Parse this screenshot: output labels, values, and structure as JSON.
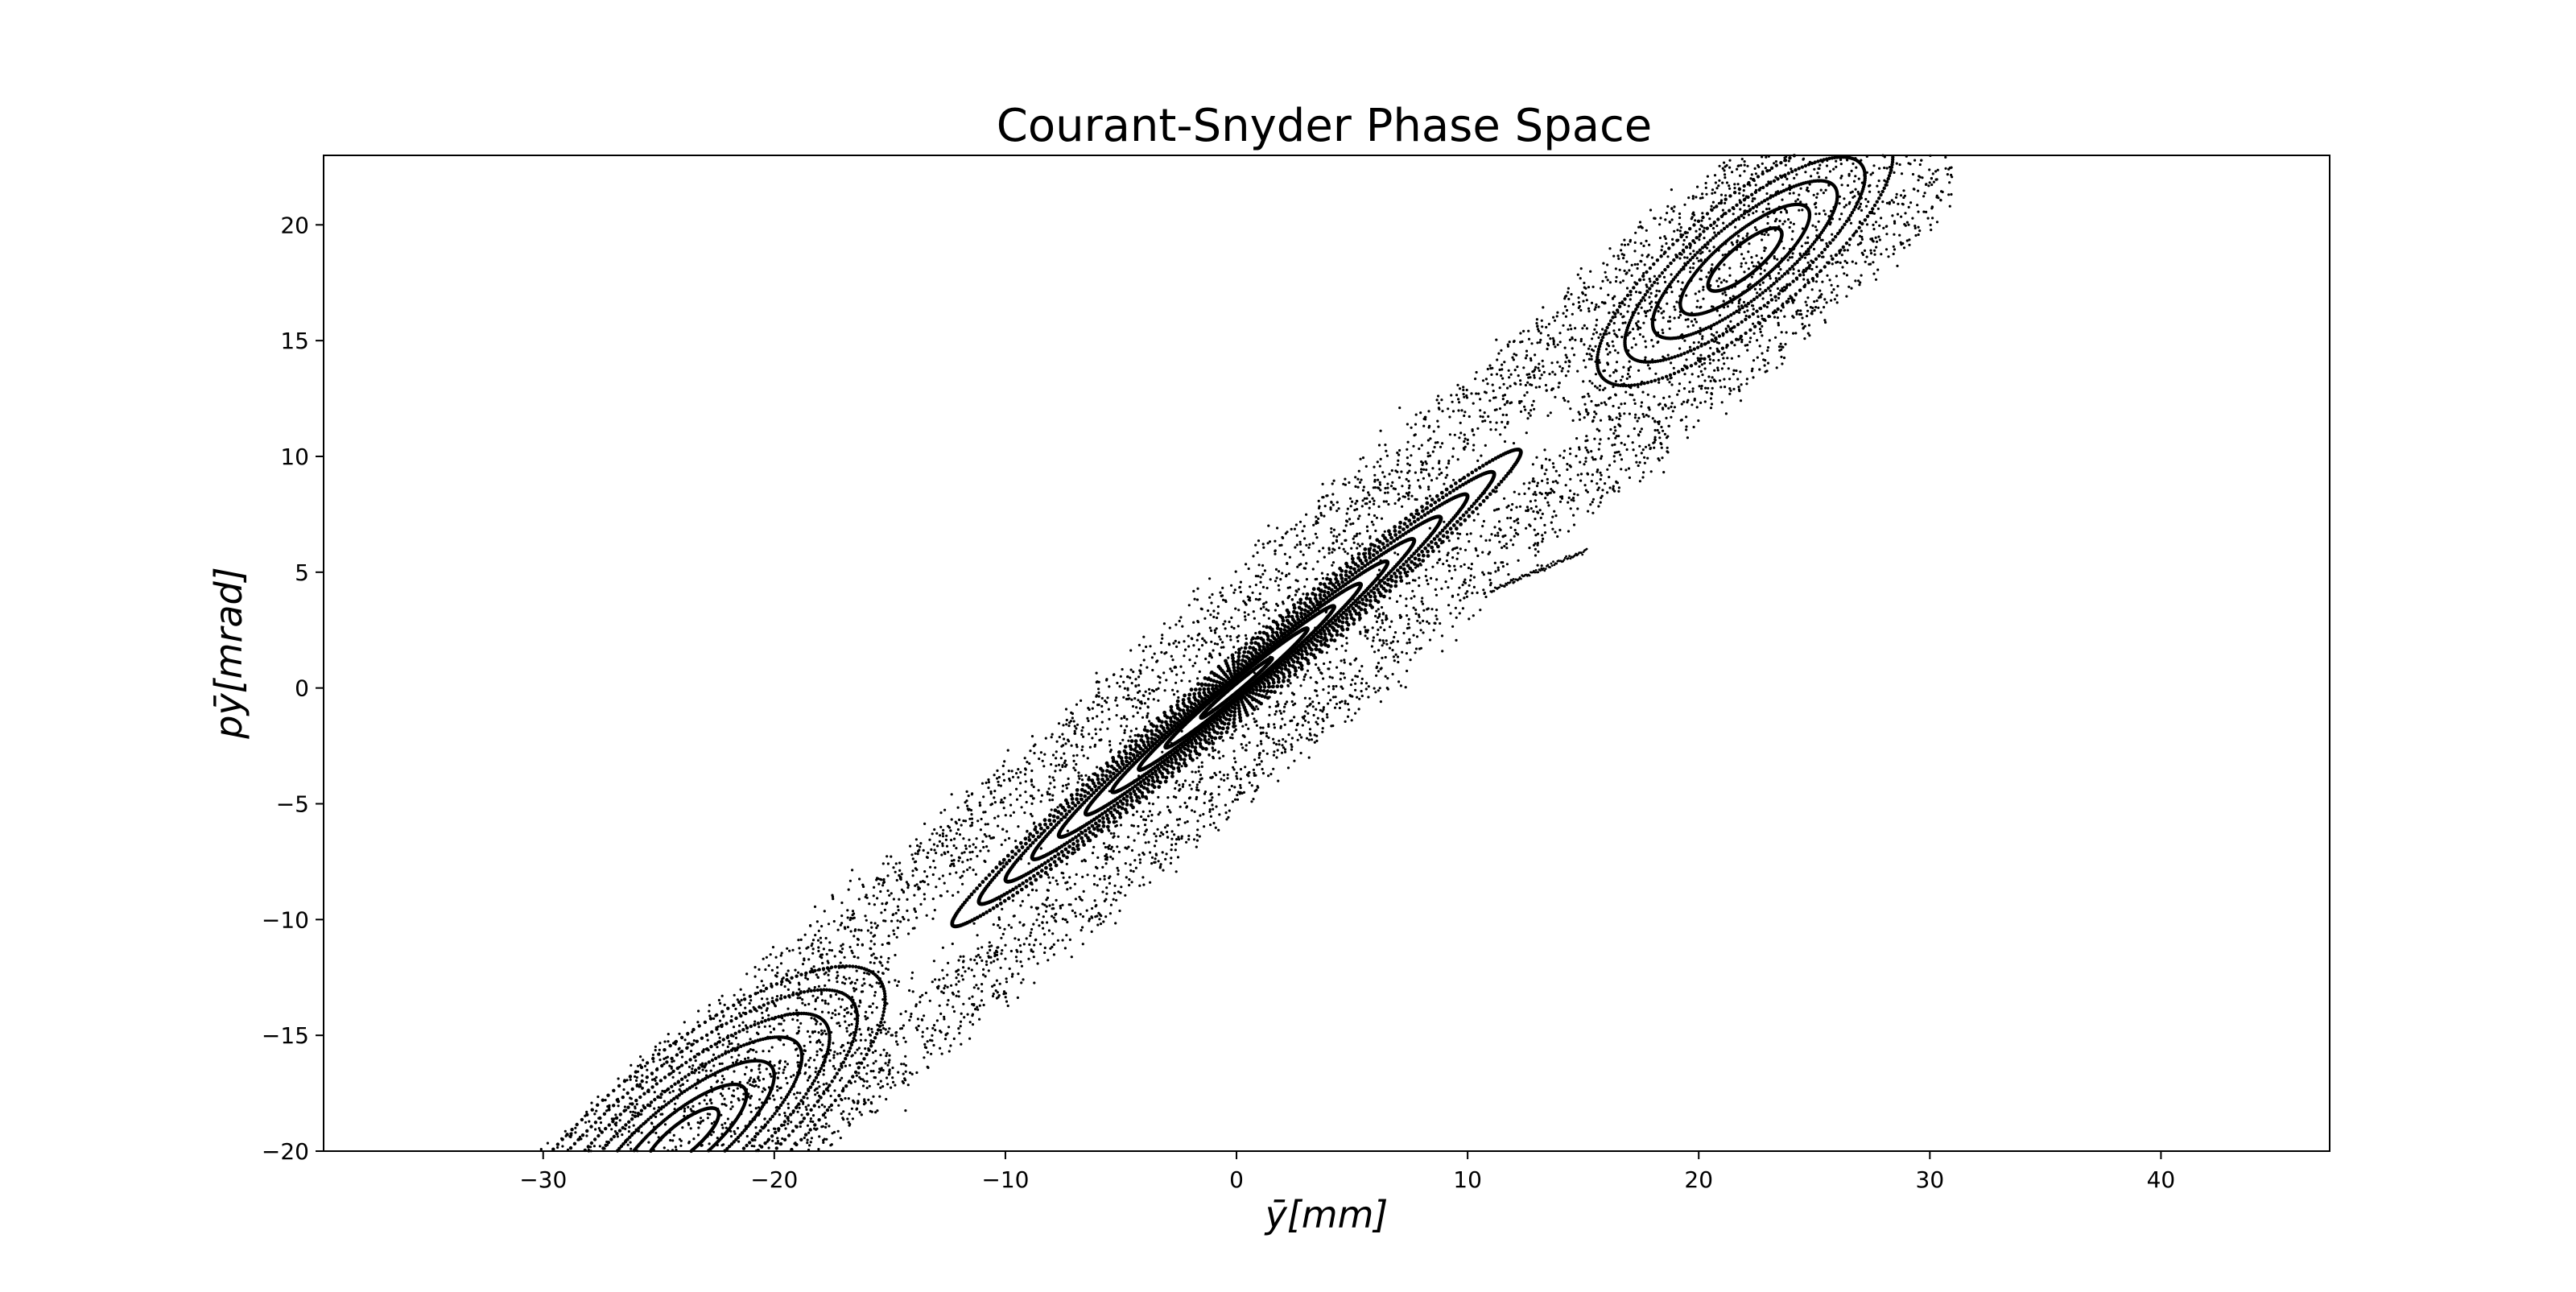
{
  "chart_data": {
    "type": "scatter",
    "title": "Courant-Snyder Phase Space",
    "xlabel": "ȳ[mm]",
    "ylabel": "pȳ[mrad]",
    "xlim": [
      -39.5,
      47.3
    ],
    "ylim": [
      -20,
      23
    ],
    "xticks": [
      -30,
      -20,
      -10,
      0,
      10,
      20,
      30,
      40
    ],
    "yticks": [
      -20,
      -15,
      -10,
      -5,
      0,
      5,
      10,
      15,
      20
    ],
    "grid": false,
    "legend": "none",
    "marker_color": "#000000",
    "series": [
      {
        "description_kind": "closed_orbits",
        "center": [
          0,
          0
        ],
        "slope": 0.835,
        "minor_axis_scale": 0.075,
        "semi_axes_along_major": [
          2,
          4,
          5.5,
          7,
          8.5,
          10,
          11.5,
          13,
          14.5,
          16
        ],
        "points_per_orbit": 260
      },
      {
        "description_kind": "island_chain_lower",
        "center": [
          -24,
          -19.5
        ],
        "semi_axes_along_major": [
          2,
          3.5,
          5,
          6.5,
          8,
          9.5,
          11
        ],
        "points_per_orbit": 220
      },
      {
        "description_kind": "island_chain_upper",
        "center": [
          22,
          18.5
        ],
        "semi_axes_along_major": [
          2,
          3.5,
          5,
          6.5,
          8
        ],
        "points_per_orbit": 200
      },
      {
        "description_kind": "chaotic_halo",
        "y_range": [
          -35,
          31
        ],
        "slope": 0.835,
        "band_half_width_mrad": 5.2,
        "points": 9000
      }
    ]
  }
}
